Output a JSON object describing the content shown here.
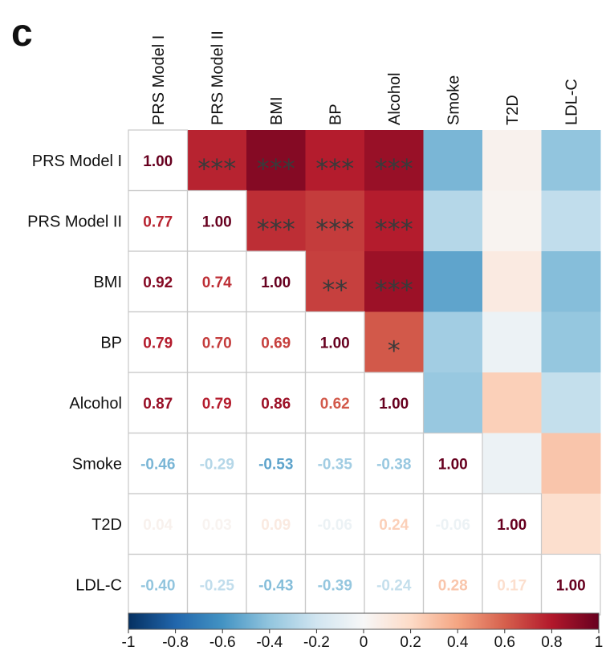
{
  "panel_label": "c",
  "chart_data": {
    "type": "heatmap",
    "variables": [
      "PRS Model I",
      "PRS Model II",
      "BMI",
      "BP",
      "Alcohol",
      "Smoke",
      "T2D",
      "LDL-C"
    ],
    "matrix": [
      [
        1.0,
        0.77,
        0.92,
        0.79,
        0.87,
        -0.46,
        0.04,
        -0.4
      ],
      [
        0.77,
        1.0,
        0.74,
        0.7,
        0.79,
        -0.29,
        0.03,
        -0.25
      ],
      [
        0.92,
        0.74,
        1.0,
        0.69,
        0.86,
        -0.53,
        0.09,
        -0.43
      ],
      [
        0.79,
        0.7,
        0.69,
        1.0,
        0.62,
        -0.35,
        -0.06,
        -0.39
      ],
      [
        0.87,
        0.79,
        0.86,
        0.62,
        1.0,
        -0.38,
        0.24,
        -0.24
      ],
      [
        -0.46,
        -0.29,
        -0.53,
        -0.35,
        -0.38,
        1.0,
        -0.06,
        0.28
      ],
      [
        0.04,
        0.03,
        0.09,
        -0.06,
        0.24,
        -0.06,
        1.0,
        0.17
      ],
      [
        -0.4,
        -0.25,
        -0.43,
        -0.39,
        -0.24,
        0.28,
        0.17,
        1.0
      ]
    ],
    "lower_labels": [
      [
        "1.00",
        "",
        "",
        "",
        "",
        "",
        "",
        ""
      ],
      [
        "0.77",
        "1.00",
        "",
        "",
        "",
        "",
        "",
        ""
      ],
      [
        "0.92",
        "0.74",
        "1.00",
        "",
        "",
        "",
        "",
        ""
      ],
      [
        "0.79",
        "0.70",
        "0.69",
        "1.00",
        "",
        "",
        "",
        ""
      ],
      [
        "0.87",
        "0.79",
        "0.86",
        "0.62",
        "1.00",
        "",
        "",
        ""
      ],
      [
        "-0.46",
        "-0.29",
        "-0.53",
        "-0.35",
        "-0.38",
        "1.00",
        "",
        ""
      ],
      [
        "0.04",
        "0.03",
        "0.09",
        "-0.06",
        "0.24",
        "-0.06",
        "1.00",
        ""
      ],
      [
        "-0.40",
        "-0.25",
        "-0.43",
        "-0.39",
        "-0.24",
        "0.28",
        "0.17",
        "1.00"
      ]
    ],
    "upper_significance": [
      [
        "",
        "***",
        "***",
        "***",
        "***",
        "",
        "",
        ""
      ],
      [
        "",
        "",
        "***",
        "***",
        "***",
        "",
        "",
        ""
      ],
      [
        "",
        "",
        "",
        "**",
        "***",
        "",
        "",
        ""
      ],
      [
        "",
        "",
        "",
        "",
        "*",
        "",
        "",
        ""
      ],
      [
        "",
        "",
        "",
        "",
        "",
        "",
        "",
        ""
      ],
      [
        "",
        "",
        "",
        "",
        "",
        "",
        "",
        ""
      ],
      [
        "",
        "",
        "",
        "",
        "",
        "",
        "",
        ""
      ],
      [
        "",
        "",
        "",
        "",
        "",
        "",
        "",
        ""
      ]
    ],
    "colorbar": {
      "range": [
        -1,
        1
      ],
      "ticks": [
        "-1",
        "-0.8",
        "-0.6",
        "-0.4",
        "-0.2",
        "0",
        "0.2",
        "0.4",
        "0.6",
        "0.8",
        "1"
      ],
      "colors": [
        "#053061",
        "#2166ac",
        "#4393c3",
        "#92c5de",
        "#d1e5f0",
        "#f7f7f7",
        "#fddbc7",
        "#f4a582",
        "#d6604d",
        "#b2182b",
        "#67001f"
      ]
    },
    "grid": true,
    "legend_placement": "bottom"
  }
}
